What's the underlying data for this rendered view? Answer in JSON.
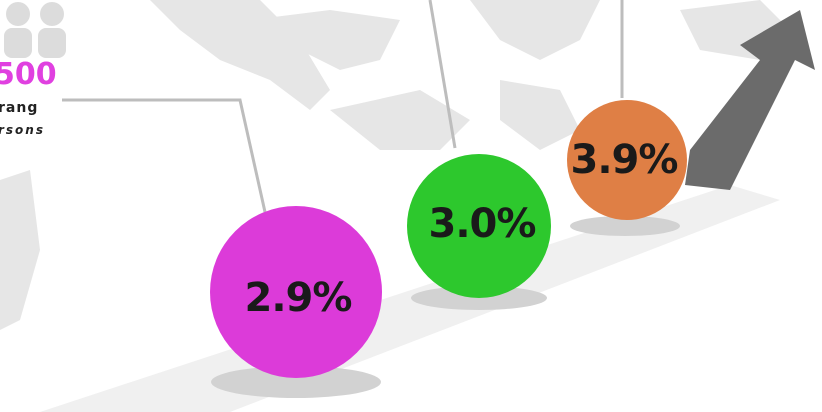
{
  "legend_block": {
    "number": "500",
    "line1": "rang",
    "line2": "rsons"
  },
  "bubbles": [
    {
      "label": "2.9%"
    },
    {
      "label": "3.0%"
    },
    {
      "label": "3.9%"
    }
  ]
}
